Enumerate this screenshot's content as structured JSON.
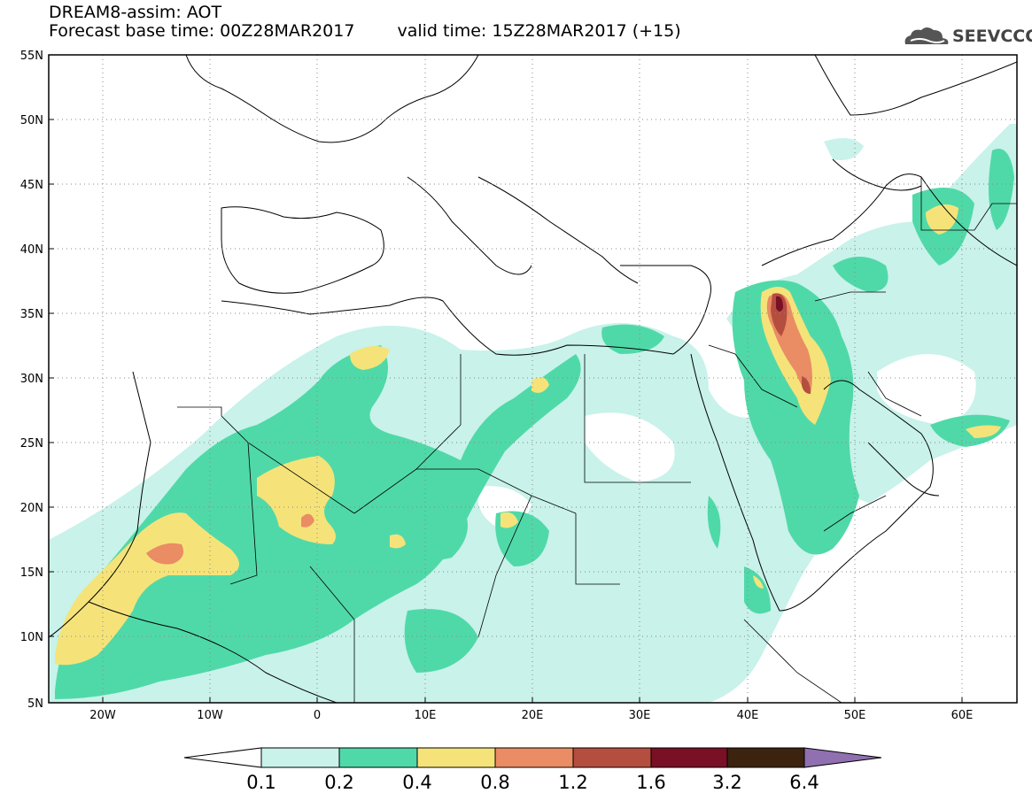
{
  "header": {
    "title": "DREAM8-assim: AOT",
    "base_time_label": "Forecast base time: 00Z28MAR2017",
    "valid_time_label": "valid time: 15Z28MAR2017 (+15)"
  },
  "logo": {
    "text": "SEEVCCC",
    "icon": "cloud-logo-icon"
  },
  "map": {
    "lat_labels": [
      "55N",
      "50N",
      "45N",
      "40N",
      "35N",
      "30N",
      "25N",
      "20N",
      "15N",
      "10N",
      "5N"
    ],
    "lon_labels": [
      "20W",
      "10W",
      "0",
      "10E",
      "20E",
      "30E",
      "40E",
      "50E",
      "60E"
    ],
    "lon_range": [
      -25,
      65
    ],
    "lat_range": [
      5,
      55
    ]
  },
  "legend": {
    "levels": [
      "0.1",
      "0.2",
      "0.4",
      "0.8",
      "1.2",
      "1.6",
      "3.2",
      "6.4"
    ],
    "colors": [
      "#ffffff",
      "#c8f2ea",
      "#50d9a8",
      "#f5e37a",
      "#ea8c64",
      "#b44e3e",
      "#7a1026",
      "#3b2310",
      "#9070b0"
    ]
  }
}
